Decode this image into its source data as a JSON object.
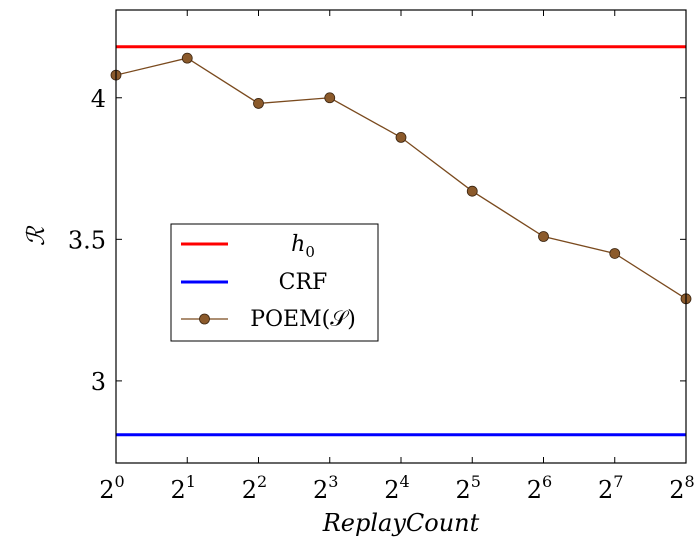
{
  "chart_data": {
    "type": "line",
    "xlabel": "ReplayCount",
    "ylabel": "ℛ",
    "x_scale": "log2",
    "x": [
      1,
      2,
      4,
      8,
      16,
      32,
      64,
      128,
      256
    ],
    "x_tick_labels": [
      {
        "base": "2",
        "exp": "0"
      },
      {
        "base": "2",
        "exp": "1"
      },
      {
        "base": "2",
        "exp": "2"
      },
      {
        "base": "2",
        "exp": "3"
      },
      {
        "base": "2",
        "exp": "4"
      },
      {
        "base": "2",
        "exp": "5"
      },
      {
        "base": "2",
        "exp": "6"
      },
      {
        "base": "2",
        "exp": "7"
      },
      {
        "base": "2",
        "exp": "8"
      }
    ],
    "y_ticks": [
      3,
      3.5,
      4
    ],
    "y_tick_labels": [
      "3",
      "3.5",
      "4"
    ],
    "ylim": [
      2.71,
      4.31
    ],
    "grid": false,
    "legend_position": "center-left",
    "series": [
      {
        "name": "h0",
        "legend_base": "h",
        "legend_sub": "0",
        "kind": "constant",
        "value": 4.18,
        "color": "#ff0000"
      },
      {
        "name": "CRF",
        "kind": "constant",
        "value": 2.81,
        "color": "#0000ff"
      },
      {
        "name": "POEM(𝒮)",
        "kind": "line",
        "values": [
          4.08,
          4.14,
          3.98,
          4.0,
          3.86,
          3.67,
          3.51,
          3.45,
          3.29
        ],
        "color": "#7a4a1e",
        "marker_color": "#8b5a2b"
      }
    ]
  }
}
